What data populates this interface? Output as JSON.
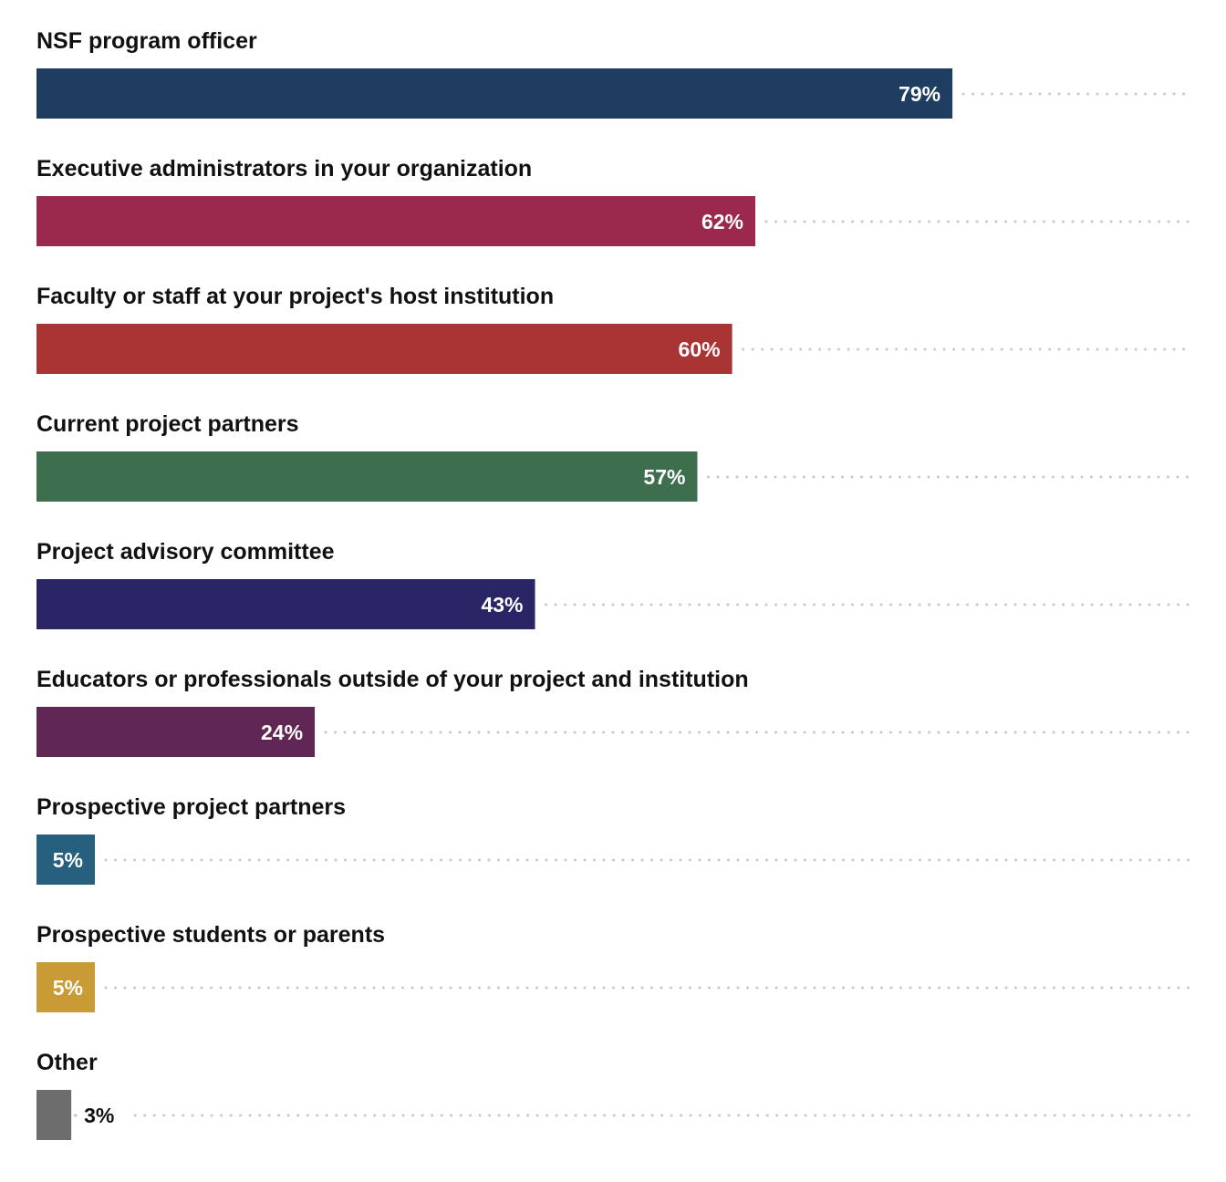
{
  "chart_data": {
    "type": "bar",
    "orientation": "horizontal",
    "categories": [
      "NSF program officer",
      "Executive administrators in your organization",
      "Faculty or staff at your project's host institution",
      "Current project partners",
      "Project advisory committee",
      "Educators or professionals outside of your project and institution",
      "Prospective project partners",
      "Prospective students or parents",
      "Other"
    ],
    "values": [
      79,
      62,
      60,
      57,
      43,
      24,
      5,
      5,
      3
    ],
    "value_labels": [
      "79%",
      "62%",
      "60%",
      "57%",
      "43%",
      "24%",
      "5%",
      "5%",
      "3%"
    ],
    "colors": [
      "#1f3d60",
      "#9b284d",
      "#a93434",
      "#3d6e4e",
      "#2a2565",
      "#612754",
      "#27607f",
      "#c99b36",
      "#6d6d6d"
    ],
    "xlim": [
      0,
      100
    ],
    "grid": false,
    "title": "",
    "xlabel": "",
    "ylabel": ""
  }
}
